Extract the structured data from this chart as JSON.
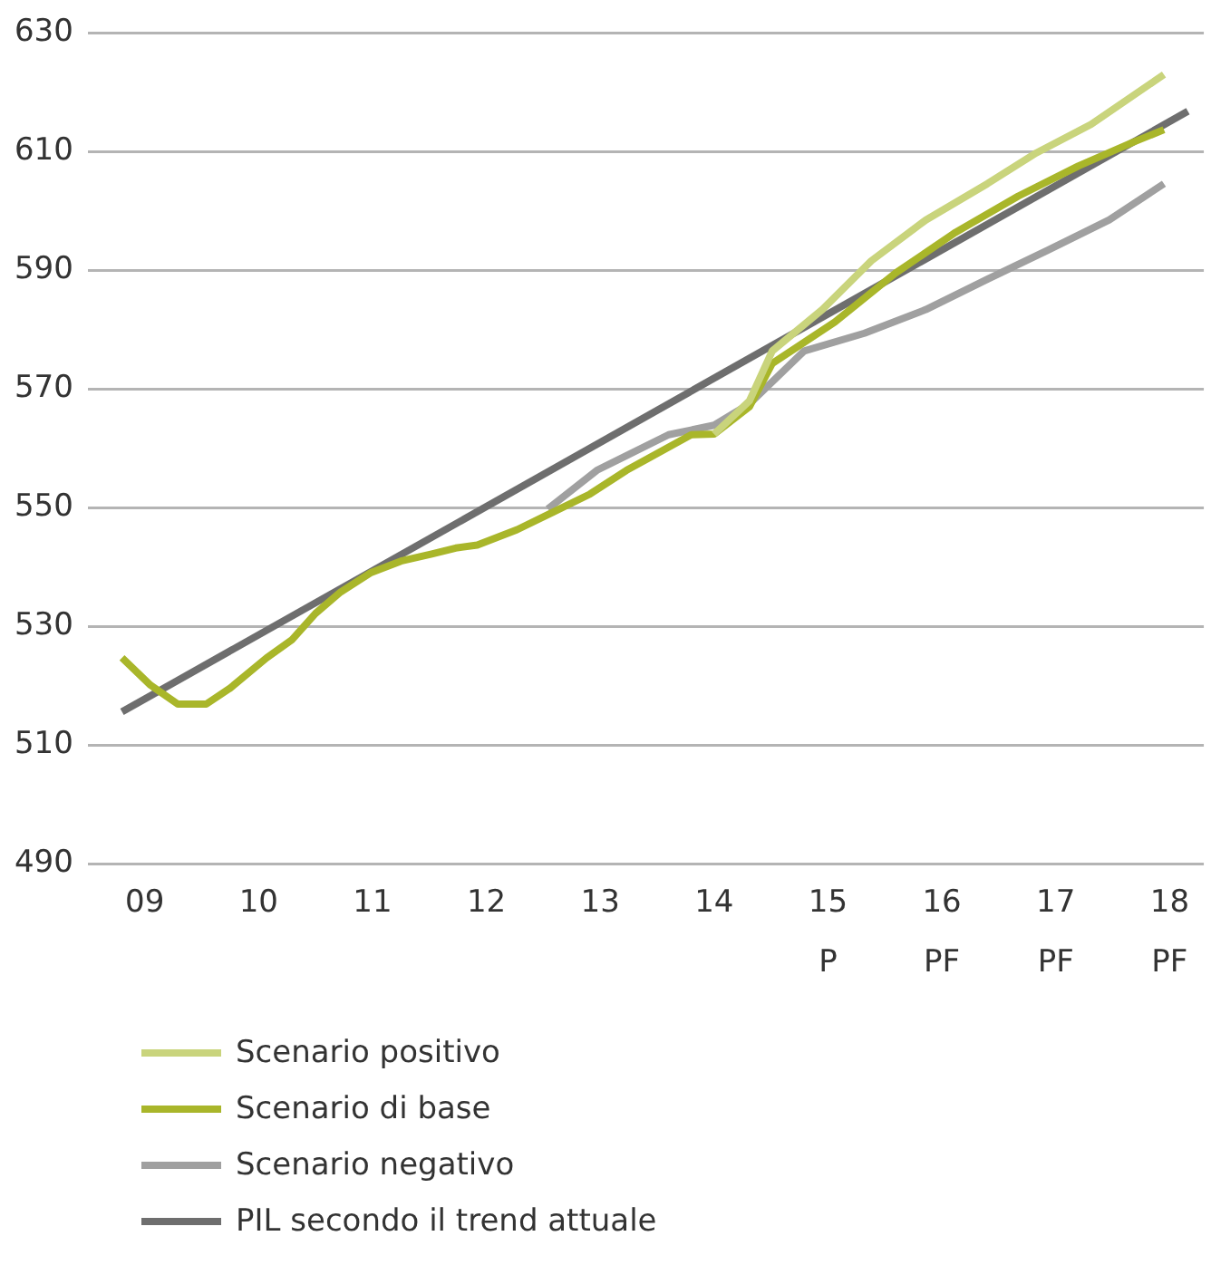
{
  "chart_data": {
    "type": "line",
    "xlim": [
      2008.5,
      2018.3
    ],
    "xticks": [
      {
        "value": 2009,
        "label": "09"
      },
      {
        "value": 2010,
        "label": "10"
      },
      {
        "value": 2011,
        "label": "11"
      },
      {
        "value": 2012,
        "label": "12"
      },
      {
        "value": 2013,
        "label": "13"
      },
      {
        "value": 2014,
        "label": "14"
      },
      {
        "value": 2015,
        "label": "15"
      },
      {
        "value": 2016,
        "label": "16"
      },
      {
        "value": 2017,
        "label": "17"
      },
      {
        "value": 2018,
        "label": "18"
      }
    ],
    "annotations": [
      "P",
      "PF",
      "PF",
      "PF"
    ],
    "ylim": [
      490,
      630
    ],
    "yticks": [
      490,
      510,
      530,
      550,
      570,
      590,
      610,
      630
    ],
    "grid": "y",
    "legend": "bottom",
    "marker": "none",
    "line_style": "solid",
    "series": [
      {
        "name": "Scenario positivo",
        "color": "#c9d47c",
        "x": [
          2014,
          2014.31,
          2014.51,
          2014.95,
          2015.38,
          2015.86,
          2016.4,
          2016.83,
          2017.31,
          2017.95
        ],
        "values": [
          562.4,
          568,
          576.4,
          583.4,
          591.6,
          598.5,
          604.6,
          609.8,
          614.6,
          623
        ]
      },
      {
        "name": "Scenario di base",
        "color": "#a9b62a",
        "x": [
          2008.8,
          2009.05,
          2009.29,
          2009.54,
          2009.75,
          2010.07,
          2010.29,
          2010.5,
          2010.72,
          2010.98,
          2011.25,
          2011.52,
          2011.73,
          2011.92,
          2012.27,
          2012.59,
          2012.91,
          2013.23,
          2013.8,
          2014,
          2014.31,
          2014.51,
          2015.06,
          2015.59,
          2016.12,
          2016.67,
          2017.2,
          2017.68,
          2017.95
        ],
        "values": [
          524.7,
          520.1,
          516.9,
          516.9,
          519.6,
          524.7,
          527.7,
          532.2,
          535.8,
          539,
          541,
          542.2,
          543.2,
          543.7,
          546.3,
          549.3,
          552.3,
          556.3,
          562.3,
          562.4,
          567,
          574.3,
          581.3,
          589.5,
          596.4,
          602.5,
          607.6,
          611.6,
          613.7
        ]
      },
      {
        "name": "Scenario negativo",
        "color": "#a0a0a0",
        "x": [
          2012.54,
          2012.97,
          2013.6,
          2014,
          2014.31,
          2014.79,
          2015.32,
          2015.86,
          2016.4,
          2016.93,
          2017.47,
          2017.95
        ],
        "values": [
          549.8,
          556.3,
          562.3,
          563.9,
          567.5,
          576.4,
          579.4,
          583.4,
          588.5,
          593.4,
          598.5,
          604.6
        ]
      },
      {
        "name": "PIL secondo il trend attuale",
        "color": "#6e6e6e",
        "x": [
          2008.8,
          2018.16
        ],
        "values": [
          515.6,
          616.8
        ]
      }
    ]
  }
}
